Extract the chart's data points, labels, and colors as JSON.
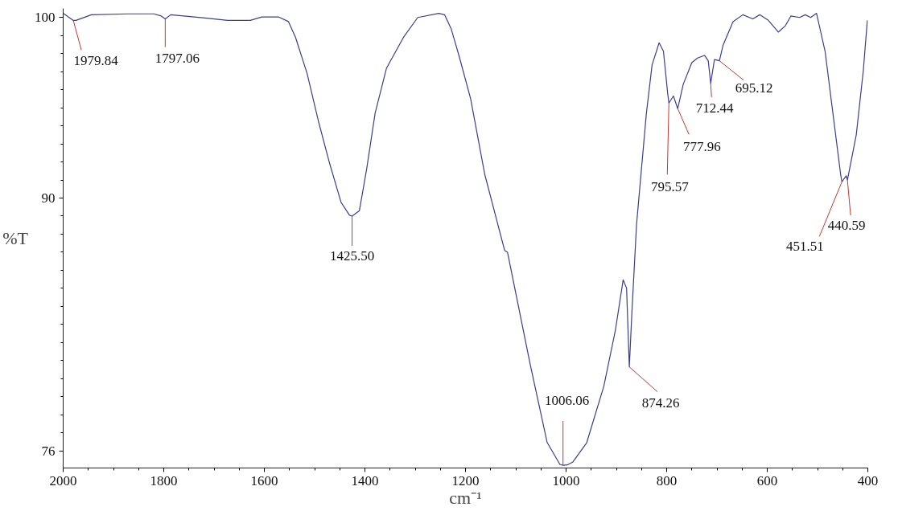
{
  "chart_data": {
    "type": "line",
    "xlabel": "cm⁻¹",
    "ylabel": "%T",
    "xlim": [
      2000,
      400
    ],
    "ylim": [
      75.05,
      100.5
    ],
    "xticks": [
      2000,
      1800,
      1600,
      1400,
      1200,
      1000,
      800,
      600,
      400
    ],
    "yticks": [
      100,
      90,
      76
    ],
    "grid": false,
    "marker": "none",
    "line_style": "solid",
    "series": [
      {
        "color": "#3c3c96",
        "x": [
          2000,
          1980.3,
          1974.6,
          1943.8,
          1870,
          1819.6,
          1805,
          1797,
          1786,
          1718,
          1673,
          1628,
          1605,
          1572,
          1552,
          1538,
          1515,
          1492.4,
          1470,
          1447.4,
          1430.6,
          1425.5,
          1411,
          1396.6,
          1379.7,
          1357,
          1323.3,
          1295,
          1253,
          1241.6,
          1228.6,
          1212.4,
          1189.8,
          1161.6,
          1122.2,
          1116.5,
          1071.4,
          1037.6,
          1012.3,
          1006.06,
          998,
          987,
          959,
          925,
          902,
          886.5,
          879.7,
          874.26,
          868.7,
          862.8,
          860,
          840.3,
          829,
          815,
          806.4,
          798,
          795.57,
          786.6,
          777.96,
          767,
          750,
          738.7,
          724.7,
          717.3,
          712.44,
          705,
          695.12,
          688,
          668,
          648.6,
          628.7,
          615,
          597.8,
          578,
          564,
          553,
          535.5,
          524.5,
          513.6,
          502,
          485,
          468.1,
          454,
          451.51,
          443,
          440.59,
          423,
          409,
          401
        ],
        "values": [
          100.23,
          99.84,
          99.84,
          100.15,
          100.2,
          100.2,
          100.08,
          99.92,
          100.15,
          99.97,
          99.84,
          99.84,
          100.03,
          100.03,
          99.77,
          98.9,
          96.9,
          94.25,
          91.9,
          89.76,
          89.05,
          89.0,
          89.3,
          91.6,
          94.7,
          97.2,
          98.9,
          100.0,
          100.23,
          100.15,
          99.38,
          97.83,
          95.5,
          91.3,
          87.1,
          87.0,
          80.8,
          76.46,
          75.25,
          75.2,
          75.22,
          75.37,
          76.45,
          79.57,
          82.67,
          85.47,
          85.0,
          80.65,
          83.9,
          87.0,
          88.5,
          94.7,
          97.37,
          98.6,
          98.13,
          95.8,
          95.26,
          95.65,
          94.95,
          96.3,
          97.5,
          97.75,
          97.9,
          97.6,
          96.35,
          97.67,
          97.6,
          98.45,
          99.77,
          100.15,
          99.92,
          100.15,
          99.84,
          99.19,
          99.54,
          100.08,
          100.0,
          100.15,
          100.0,
          100.23,
          98.13,
          94.4,
          91.3,
          90.9,
          91.23,
          91.0,
          93.5,
          97.05,
          99.84
        ]
      }
    ],
    "annotations": [
      {
        "text": "1979.84",
        "x": 1979.84,
        "y": 99.84
      },
      {
        "text": "1797.06",
        "x": 1797.06,
        "y": 99.92
      },
      {
        "text": "1425.50",
        "x": 1425.5,
        "y": 89.0
      },
      {
        "text": "1006.06",
        "x": 1006.06,
        "y": 75.2
      },
      {
        "text": "874.26",
        "x": 874.26,
        "y": 80.65
      },
      {
        "text": "795.57",
        "x": 795.57,
        "y": 95.26
      },
      {
        "text": "777.96",
        "x": 777.96,
        "y": 94.95
      },
      {
        "text": "712.44",
        "x": 712.44,
        "y": 96.35
      },
      {
        "text": "695.12",
        "x": 695.12,
        "y": 97.6
      },
      {
        "text": "451.51",
        "x": 451.51,
        "y": 90.9
      },
      {
        "text": "440.59",
        "x": 440.59,
        "y": 91.0
      }
    ]
  }
}
